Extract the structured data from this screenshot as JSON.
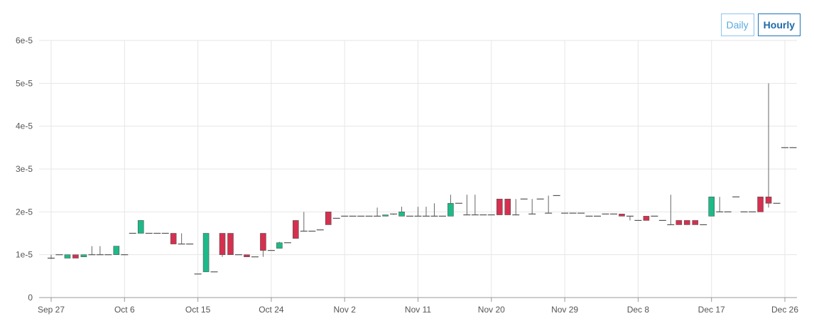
{
  "controls": {
    "daily_label": "Daily",
    "hourly_label": "Hourly",
    "active": "Hourly"
  },
  "colors": {
    "up": "#1dba88",
    "down": "#d5304f",
    "flat": "#555555",
    "grid": "#e6e6e6",
    "axis": "#999999"
  },
  "chart_data": {
    "type": "candlestick",
    "y_ticks": [
      "0",
      "1e-5",
      "2e-5",
      "3e-5",
      "4e-5",
      "5e-5",
      "6e-5"
    ],
    "x_ticks": [
      "Sep 27",
      "Oct 6",
      "Oct 15",
      "Oct 24",
      "Nov 2",
      "Nov 11",
      "Nov 20",
      "Nov 29",
      "Dec 8",
      "Dec 17",
      "Dec 26"
    ],
    "ylim": [
      0,
      6e-05
    ],
    "grid": true,
    "candles": [
      {
        "date": "Sep 27",
        "o": 9.2e-06,
        "h": 1e-05,
        "l": 9e-06,
        "c": 9.2e-06
      },
      {
        "date": "Sep 28",
        "o": 1e-05,
        "h": 1e-05,
        "l": 1e-05,
        "c": 1e-05
      },
      {
        "date": "Sep 29",
        "o": 9.2e-06,
        "h": 1e-05,
        "l": 9.2e-06,
        "c": 1e-05
      },
      {
        "date": "Sep 30",
        "o": 1e-05,
        "h": 1e-05,
        "l": 9.2e-06,
        "c": 9.2e-06
      },
      {
        "date": "Oct 1",
        "o": 9.5e-06,
        "h": 1e-05,
        "l": 9.5e-06,
        "c": 1e-05
      },
      {
        "date": "Oct 2",
        "o": 1e-05,
        "h": 1.2e-05,
        "l": 1e-05,
        "c": 1e-05
      },
      {
        "date": "Oct 3",
        "o": 1e-05,
        "h": 1.2e-05,
        "l": 1e-05,
        "c": 1e-05
      },
      {
        "date": "Oct 4",
        "o": 1e-05,
        "h": 1e-05,
        "l": 1e-05,
        "c": 1e-05
      },
      {
        "date": "Oct 5",
        "o": 1e-05,
        "h": 1.2e-05,
        "l": 1e-05,
        "c": 1.2e-05
      },
      {
        "date": "Oct 6",
        "o": 1e-05,
        "h": 1e-05,
        "l": 1e-05,
        "c": 1e-05
      },
      {
        "date": "Oct 7",
        "o": 1.5e-05,
        "h": 1.5e-05,
        "l": 1.5e-05,
        "c": 1.5e-05
      },
      {
        "date": "Oct 8",
        "o": 1.5e-05,
        "h": 1.8e-05,
        "l": 1.5e-05,
        "c": 1.8e-05
      },
      {
        "date": "Oct 9",
        "o": 1.5e-05,
        "h": 1.5e-05,
        "l": 1.5e-05,
        "c": 1.5e-05
      },
      {
        "date": "Oct 10",
        "o": 1.5e-05,
        "h": 1.5e-05,
        "l": 1.5e-05,
        "c": 1.5e-05
      },
      {
        "date": "Oct 11",
        "o": 1.5e-05,
        "h": 1.5e-05,
        "l": 1.5e-05,
        "c": 1.5e-05
      },
      {
        "date": "Oct 12",
        "o": 1.5e-05,
        "h": 1.5e-05,
        "l": 1.25e-05,
        "c": 1.25e-05
      },
      {
        "date": "Oct 13",
        "o": 1.25e-05,
        "h": 1.5e-05,
        "l": 1.25e-05,
        "c": 1.25e-05
      },
      {
        "date": "Oct 14",
        "o": 1.25e-05,
        "h": 1.25e-05,
        "l": 1.25e-05,
        "c": 1.25e-05
      },
      {
        "date": "Oct 15",
        "o": 5.5e-06,
        "h": 5.5e-06,
        "l": 5.5e-06,
        "c": 5.5e-06
      },
      {
        "date": "Oct 16",
        "o": 6e-06,
        "h": 1.5e-05,
        "l": 6e-06,
        "c": 1.5e-05
      },
      {
        "date": "Oct 17",
        "o": 6e-06,
        "h": 6e-06,
        "l": 6e-06,
        "c": 6e-06
      },
      {
        "date": "Oct 18",
        "o": 1.5e-05,
        "h": 1.5e-05,
        "l": 9.5e-06,
        "c": 1e-05
      },
      {
        "date": "Oct 19",
        "o": 1.5e-05,
        "h": 1.5e-05,
        "l": 1e-05,
        "c": 1e-05
      },
      {
        "date": "Oct 20",
        "o": 1e-05,
        "h": 1e-05,
        "l": 1e-05,
        "c": 1e-05
      },
      {
        "date": "Oct 21",
        "o": 1e-05,
        "h": 1e-05,
        "l": 9.5e-06,
        "c": 9.5e-06
      },
      {
        "date": "Oct 22",
        "o": 9.5e-06,
        "h": 9.5e-06,
        "l": 9.5e-06,
        "c": 9.5e-06
      },
      {
        "date": "Oct 23",
        "o": 1.5e-05,
        "h": 1.5e-05,
        "l": 9.5e-06,
        "c": 1.1e-05
      },
      {
        "date": "Oct 24",
        "o": 1.1e-05,
        "h": 1.1e-05,
        "l": 1.1e-05,
        "c": 1.1e-05
      },
      {
        "date": "Oct 25",
        "o": 1.15e-05,
        "h": 1.3e-05,
        "l": 1.15e-05,
        "c": 1.28e-05
      },
      {
        "date": "Oct 26",
        "o": 1.28e-05,
        "h": 1.28e-05,
        "l": 1.28e-05,
        "c": 1.28e-05
      },
      {
        "date": "Oct 27",
        "o": 1.8e-05,
        "h": 1.8e-05,
        "l": 1.38e-05,
        "c": 1.38e-05
      },
      {
        "date": "Oct 28",
        "o": 1.55e-05,
        "h": 2e-05,
        "l": 1.55e-05,
        "c": 1.55e-05
      },
      {
        "date": "Oct 29",
        "o": 1.55e-05,
        "h": 1.55e-05,
        "l": 1.55e-05,
        "c": 1.55e-05
      },
      {
        "date": "Oct 30",
        "o": 1.58e-05,
        "h": 1.58e-05,
        "l": 1.58e-05,
        "c": 1.58e-05
      },
      {
        "date": "Oct 31",
        "o": 2e-05,
        "h": 2e-05,
        "l": 1.7e-05,
        "c": 1.7e-05
      },
      {
        "date": "Nov 1",
        "o": 1.85e-05,
        "h": 1.85e-05,
        "l": 1.85e-05,
        "c": 1.85e-05
      },
      {
        "date": "Nov 2",
        "o": 1.9e-05,
        "h": 1.9e-05,
        "l": 1.9e-05,
        "c": 1.9e-05
      },
      {
        "date": "Nov 3",
        "o": 1.9e-05,
        "h": 1.9e-05,
        "l": 1.9e-05,
        "c": 1.9e-05
      },
      {
        "date": "Nov 4",
        "o": 1.9e-05,
        "h": 1.9e-05,
        "l": 1.9e-05,
        "c": 1.9e-05
      },
      {
        "date": "Nov 5",
        "o": 1.9e-05,
        "h": 1.9e-05,
        "l": 1.9e-05,
        "c": 1.9e-05
      },
      {
        "date": "Nov 6",
        "o": 1.9e-05,
        "h": 2.1e-05,
        "l": 1.9e-05,
        "c": 1.9e-05
      },
      {
        "date": "Nov 7",
        "o": 1.9e-05,
        "h": 1.93e-05,
        "l": 1.9e-05,
        "c": 1.93e-05
      },
      {
        "date": "Nov 8",
        "o": 1.93e-05,
        "h": 1.95e-05,
        "l": 1.93e-05,
        "c": 1.95e-05
      },
      {
        "date": "Nov 9",
        "o": 1.9e-05,
        "h": 2.12e-05,
        "l": 1.9e-05,
        "c": 2e-05
      },
      {
        "date": "Nov 10",
        "o": 1.9e-05,
        "h": 1.9e-05,
        "l": 1.9e-05,
        "c": 1.9e-05
      },
      {
        "date": "Nov 11",
        "o": 1.9e-05,
        "h": 2.12e-05,
        "l": 1.9e-05,
        "c": 1.9e-05
      },
      {
        "date": "Nov 12",
        "o": 1.9e-05,
        "h": 2.12e-05,
        "l": 1.9e-05,
        "c": 1.9e-05
      },
      {
        "date": "Nov 13",
        "o": 1.9e-05,
        "h": 2.2e-05,
        "l": 1.9e-05,
        "c": 1.9e-05
      },
      {
        "date": "Nov 14",
        "o": 1.9e-05,
        "h": 1.9e-05,
        "l": 1.9e-05,
        "c": 1.9e-05
      },
      {
        "date": "Nov 15",
        "o": 1.9e-05,
        "h": 2.4e-05,
        "l": 1.9e-05,
        "c": 2.2e-05
      },
      {
        "date": "Nov 16",
        "o": 2.2e-05,
        "h": 2.2e-05,
        "l": 2.2e-05,
        "c": 2.2e-05
      },
      {
        "date": "Nov 17",
        "o": 1.93e-05,
        "h": 2.4e-05,
        "l": 1.93e-05,
        "c": 1.93e-05
      },
      {
        "date": "Nov 18",
        "o": 1.93e-05,
        "h": 2.4e-05,
        "l": 1.93e-05,
        "c": 1.93e-05
      },
      {
        "date": "Nov 19",
        "o": 1.93e-05,
        "h": 1.93e-05,
        "l": 1.93e-05,
        "c": 1.93e-05
      },
      {
        "date": "Nov 20",
        "o": 1.93e-05,
        "h": 1.93e-05,
        "l": 1.93e-05,
        "c": 1.93e-05
      },
      {
        "date": "Nov 21",
        "o": 2.3e-05,
        "h": 2.3e-05,
        "l": 1.93e-05,
        "c": 1.93e-05
      },
      {
        "date": "Nov 22",
        "o": 2.3e-05,
        "h": 2.3e-05,
        "l": 1.93e-05,
        "c": 1.93e-05
      },
      {
        "date": "Nov 23",
        "o": 1.93e-05,
        "h": 2.3e-05,
        "l": 1.93e-05,
        "c": 1.93e-05
      },
      {
        "date": "Nov 24",
        "o": 2.3e-05,
        "h": 2.3e-05,
        "l": 2.3e-05,
        "c": 2.3e-05
      },
      {
        "date": "Nov 25",
        "o": 1.95e-05,
        "h": 2.3e-05,
        "l": 1.95e-05,
        "c": 1.95e-05
      },
      {
        "date": "Nov 26",
        "o": 2.3e-05,
        "h": 2.3e-05,
        "l": 2.3e-05,
        "c": 2.3e-05
      },
      {
        "date": "Nov 27",
        "o": 1.97e-05,
        "h": 2.38e-05,
        "l": 1.97e-05,
        "c": 1.97e-05
      },
      {
        "date": "Nov 28",
        "o": 2.38e-05,
        "h": 2.38e-05,
        "l": 2.38e-05,
        "c": 2.38e-05
      },
      {
        "date": "Nov 29",
        "o": 1.97e-05,
        "h": 1.97e-05,
        "l": 1.97e-05,
        "c": 1.97e-05
      },
      {
        "date": "Nov 30",
        "o": 1.97e-05,
        "h": 1.97e-05,
        "l": 1.97e-05,
        "c": 1.97e-05
      },
      {
        "date": "Dec 1",
        "o": 1.97e-05,
        "h": 1.97e-05,
        "l": 1.97e-05,
        "c": 1.97e-05
      },
      {
        "date": "Dec 2",
        "o": 1.9e-05,
        "h": 1.9e-05,
        "l": 1.9e-05,
        "c": 1.9e-05
      },
      {
        "date": "Dec 3",
        "o": 1.9e-05,
        "h": 1.9e-05,
        "l": 1.9e-05,
        "c": 1.9e-05
      },
      {
        "date": "Dec 4",
        "o": 1.95e-05,
        "h": 1.95e-05,
        "l": 1.95e-05,
        "c": 1.95e-05
      },
      {
        "date": "Dec 5",
        "o": 1.95e-05,
        "h": 1.95e-05,
        "l": 1.95e-05,
        "c": 1.95e-05
      },
      {
        "date": "Dec 6",
        "o": 1.95e-05,
        "h": 1.95e-05,
        "l": 1.9e-05,
        "c": 1.9e-05
      },
      {
        "date": "Dec 7",
        "o": 1.9e-05,
        "h": 1.9e-05,
        "l": 1.8e-05,
        "c": 1.9e-05
      },
      {
        "date": "Dec 8",
        "o": 1.8e-05,
        "h": 1.8e-05,
        "l": 1.8e-05,
        "c": 1.8e-05
      },
      {
        "date": "Dec 9",
        "o": 1.9e-05,
        "h": 1.9e-05,
        "l": 1.8e-05,
        "c": 1.8e-05
      },
      {
        "date": "Dec 10",
        "o": 1.9e-05,
        "h": 1.9e-05,
        "l": 1.9e-05,
        "c": 1.9e-05
      },
      {
        "date": "Dec 11",
        "o": 1.8e-05,
        "h": 1.8e-05,
        "l": 1.8e-05,
        "c": 1.8e-05
      },
      {
        "date": "Dec 12",
        "o": 1.7e-05,
        "h": 2.4e-05,
        "l": 1.7e-05,
        "c": 1.7e-05
      },
      {
        "date": "Dec 13",
        "o": 1.8e-05,
        "h": 1.8e-05,
        "l": 1.7e-05,
        "c": 1.7e-05
      },
      {
        "date": "Dec 14",
        "o": 1.8e-05,
        "h": 1.8e-05,
        "l": 1.7e-05,
        "c": 1.7e-05
      },
      {
        "date": "Dec 15",
        "o": 1.8e-05,
        "h": 1.8e-05,
        "l": 1.7e-05,
        "c": 1.7e-05
      },
      {
        "date": "Dec 16",
        "o": 1.7e-05,
        "h": 1.7e-05,
        "l": 1.7e-05,
        "c": 1.7e-05
      },
      {
        "date": "Dec 17",
        "o": 1.9e-05,
        "h": 2.35e-05,
        "l": 1.9e-05,
        "c": 2.35e-05
      },
      {
        "date": "Dec 18",
        "o": 2e-05,
        "h": 2.35e-05,
        "l": 2e-05,
        "c": 2e-05
      },
      {
        "date": "Dec 19",
        "o": 2e-05,
        "h": 2e-05,
        "l": 2e-05,
        "c": 2e-05
      },
      {
        "date": "Dec 20",
        "o": 2.35e-05,
        "h": 2.35e-05,
        "l": 2.35e-05,
        "c": 2.35e-05
      },
      {
        "date": "Dec 21",
        "o": 2e-05,
        "h": 2e-05,
        "l": 2e-05,
        "c": 2e-05
      },
      {
        "date": "Dec 22",
        "o": 2e-05,
        "h": 2e-05,
        "l": 2e-05,
        "c": 2e-05
      },
      {
        "date": "Dec 23",
        "o": 2.35e-05,
        "h": 2.35e-05,
        "l": 2e-05,
        "c": 2e-05
      },
      {
        "date": "Dec 24",
        "o": 2.35e-05,
        "h": 5e-05,
        "l": 2.1e-05,
        "c": 2.2e-05
      },
      {
        "date": "Dec 25",
        "o": 2.2e-05,
        "h": 2.2e-05,
        "l": 2.2e-05,
        "c": 2.2e-05
      },
      {
        "date": "Dec 26",
        "o": 3.5e-05,
        "h": 3.5e-05,
        "l": 3.5e-05,
        "c": 3.5e-05
      },
      {
        "date": "Dec 27",
        "o": 3.5e-05,
        "h": 3.5e-05,
        "l": 3.5e-05,
        "c": 3.5e-05
      }
    ]
  }
}
